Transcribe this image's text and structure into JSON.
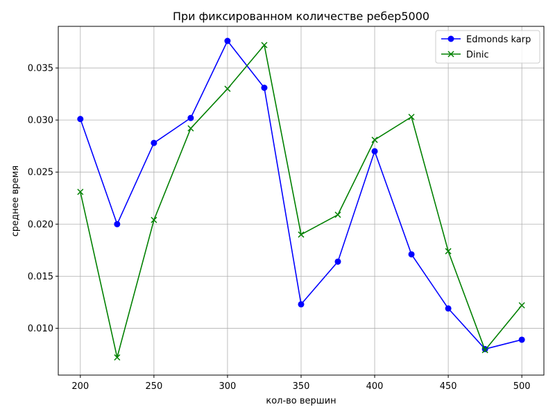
{
  "chart_data": {
    "type": "line",
    "title": "При фиксированном количестве ребер5000",
    "xlabel": "кол-во вершин",
    "ylabel": "среднее время",
    "x": [
      200,
      225,
      250,
      275,
      300,
      325,
      350,
      375,
      400,
      425,
      450,
      475,
      500
    ],
    "xticks": [
      "200",
      "250",
      "300",
      "350",
      "400",
      "450",
      "500"
    ],
    "yticks": [
      "0.010",
      "0.015",
      "0.020",
      "0.025",
      "0.030",
      "0.035"
    ],
    "xlim": [
      185,
      515
    ],
    "ylim": [
      0.0055,
      0.039
    ],
    "grid": true,
    "legend_position": "top-right",
    "series": [
      {
        "name": "Edmonds karp",
        "color": "#0000ff",
        "marker": "circle",
        "values": [
          0.0301,
          0.02,
          0.0278,
          0.0302,
          0.0376,
          0.0331,
          0.0123,
          0.0164,
          0.027,
          0.0171,
          0.0119,
          0.008,
          0.0089
        ]
      },
      {
        "name": "Dinic",
        "color": "#008000",
        "marker": "x",
        "values": [
          0.0231,
          0.0072,
          0.0204,
          0.0292,
          0.033,
          0.0372,
          0.019,
          0.0209,
          0.0281,
          0.0303,
          0.0174,
          0.0079,
          0.0122
        ]
      }
    ]
  }
}
